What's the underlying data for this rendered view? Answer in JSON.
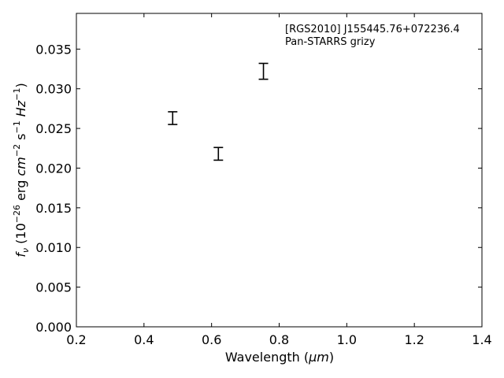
{
  "chart_data": {
    "type": "scatter",
    "title": "",
    "annotation_lines": [
      "[RGS2010] J155445.76+072236.4",
      "Pan-STARRS grizy"
    ],
    "annotation_position": "top-right",
    "xlabel": {
      "text": "Wavelength (",
      "unit": "μm",
      "close": ")"
    },
    "ylabel": {
      "symbol": "f",
      "symbol_sub": "ν",
      "prefix": " (10",
      "exp1": "−26",
      "erg": " erg ",
      "cm": "cm",
      "exp2": "−2",
      "s": " s",
      "exp3": "−1",
      "hz": " Hz",
      "exp4": "−1",
      "close": ")"
    },
    "xlim": [
      0.2,
      1.4
    ],
    "ylim": [
      0.0,
      0.0395
    ],
    "xticks": [
      0.2,
      0.4,
      0.6,
      0.8,
      1.0,
      1.2,
      1.4
    ],
    "xtick_labels": [
      "0.2",
      "0.4",
      "0.6",
      "0.8",
      "1.0",
      "1.2",
      "1.4"
    ],
    "yticks": [
      0.0,
      0.005,
      0.01,
      0.015,
      0.02,
      0.025,
      0.03,
      0.035
    ],
    "ytick_labels": [
      "0.000",
      "0.005",
      "0.010",
      "0.015",
      "0.020",
      "0.025",
      "0.030",
      "0.035"
    ],
    "grid": false,
    "points": [
      {
        "x": 0.4849,
        "y": 0.0263,
        "yerr": 0.0008
      },
      {
        "x": 0.6201,
        "y": 0.0218,
        "yerr": 0.0008
      },
      {
        "x": 0.7535,
        "y": 0.0322,
        "yerr": 0.001
      }
    ],
    "marker_color": "#000000"
  }
}
